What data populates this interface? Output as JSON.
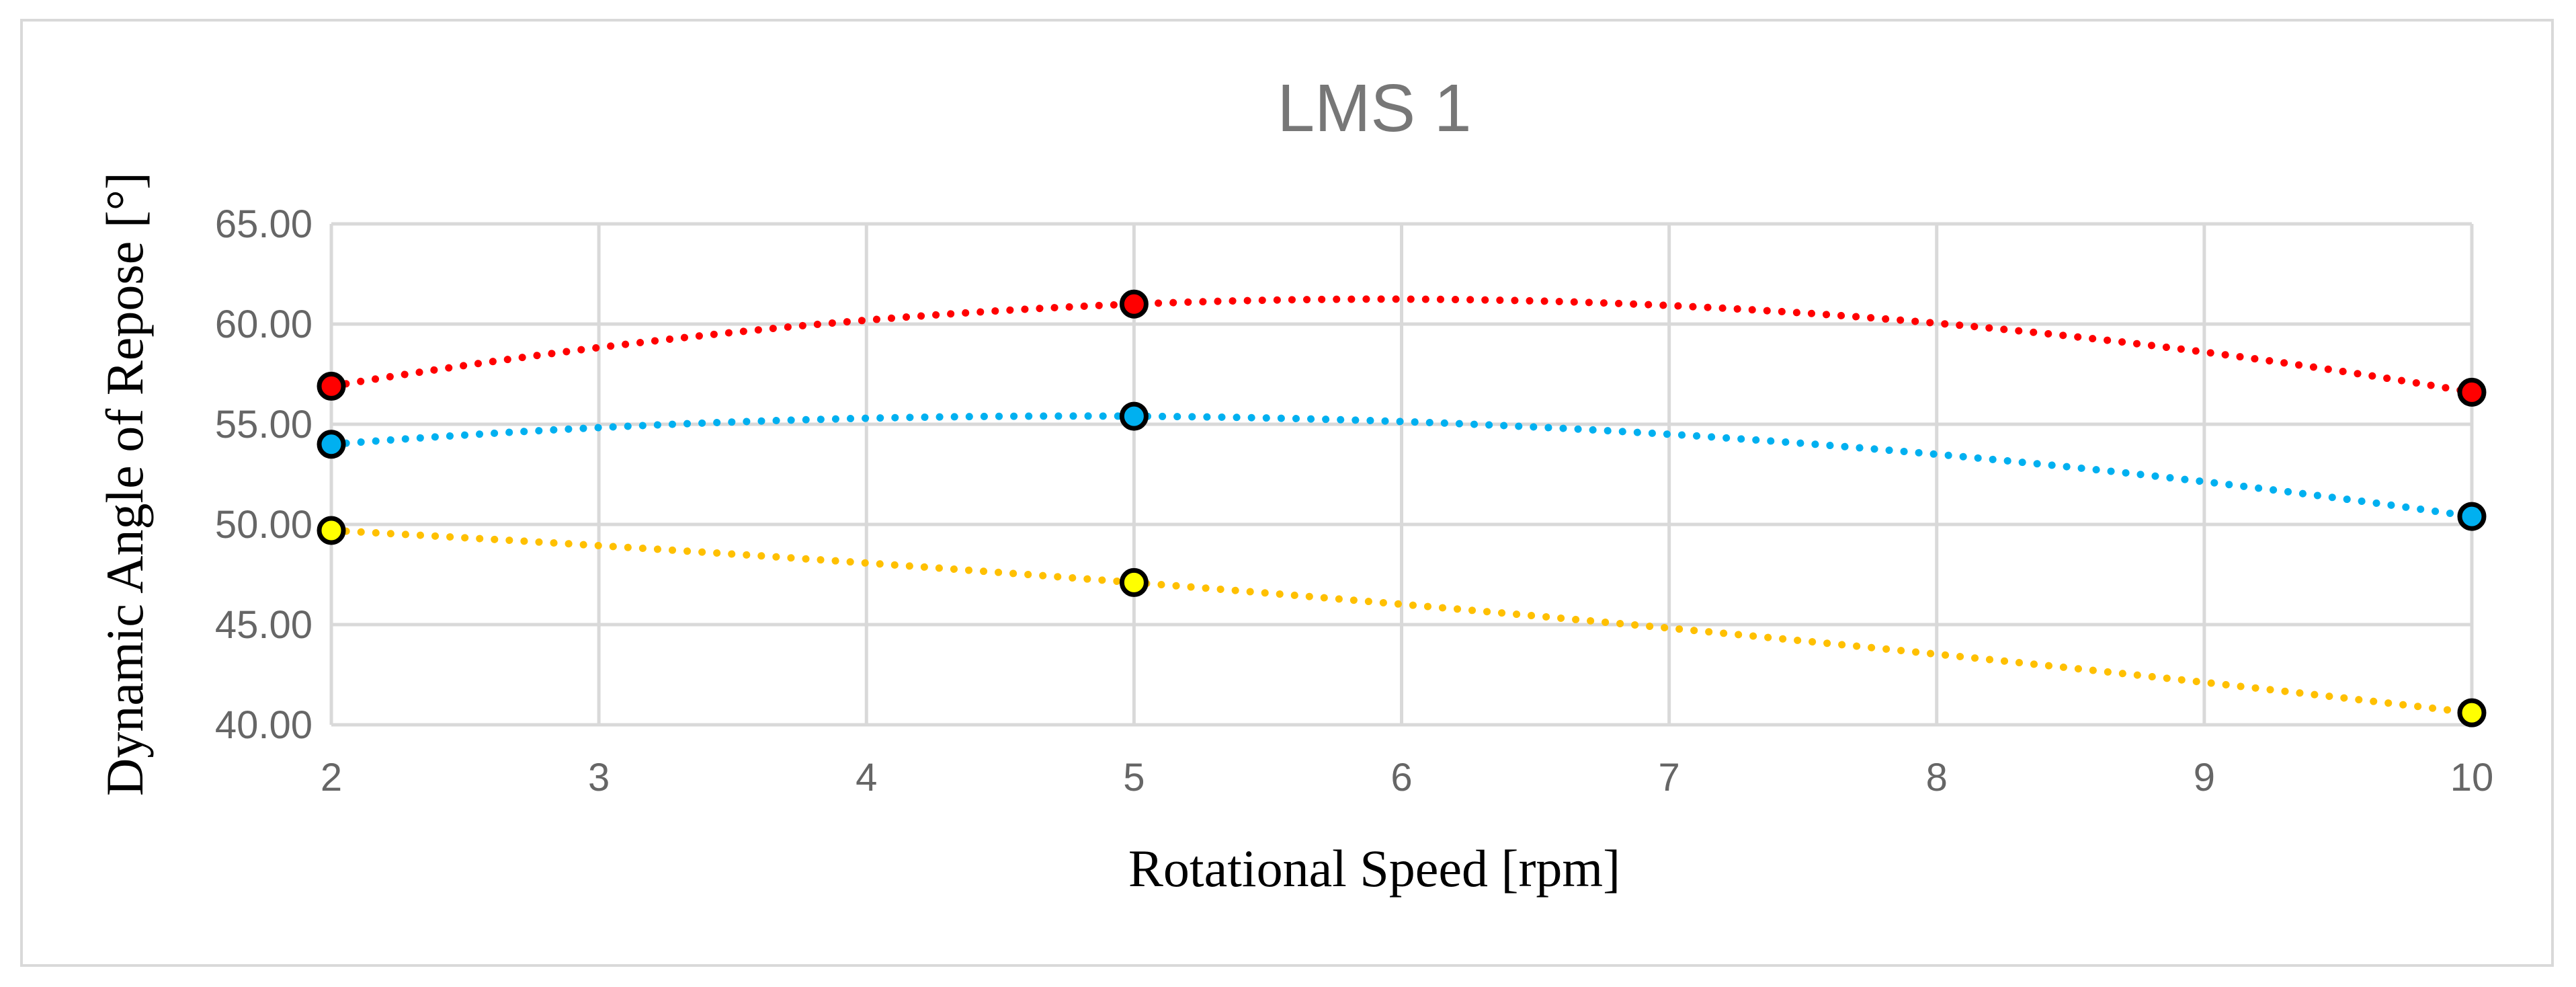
{
  "chart_data": {
    "type": "scatter",
    "title": "LMS 1",
    "xlabel": "Rotational Speed [rpm]",
    "ylabel": "Dynamic Angle of Repose [°]",
    "xlim": [
      2,
      10
    ],
    "ylim": [
      40,
      65
    ],
    "x_ticks": [
      "2",
      "3",
      "4",
      "5",
      "6",
      "7",
      "8",
      "9",
      "10"
    ],
    "y_ticks": [
      "40.00",
      "45.00",
      "50.00",
      "55.00",
      "60.00",
      "65.00"
    ],
    "grid": true,
    "trendline": "polynomial (order 2), dotted",
    "series": [
      {
        "name": "red series",
        "marker_color": "#ff0000",
        "line_color": "#ff0000",
        "x": [
          2,
          5,
          10
        ],
        "y": [
          56.9,
          61.0,
          56.6
        ]
      },
      {
        "name": "blue series",
        "marker_color": "#00b0f0",
        "line_color": "#00b0f0",
        "x": [
          2,
          5,
          10
        ],
        "y": [
          54.0,
          55.4,
          50.4
        ]
      },
      {
        "name": "yellow series",
        "marker_color": "#ffff00",
        "line_color": "#ffc000",
        "x": [
          2,
          5,
          10
        ],
        "y": [
          49.7,
          47.1,
          40.6
        ]
      }
    ]
  }
}
